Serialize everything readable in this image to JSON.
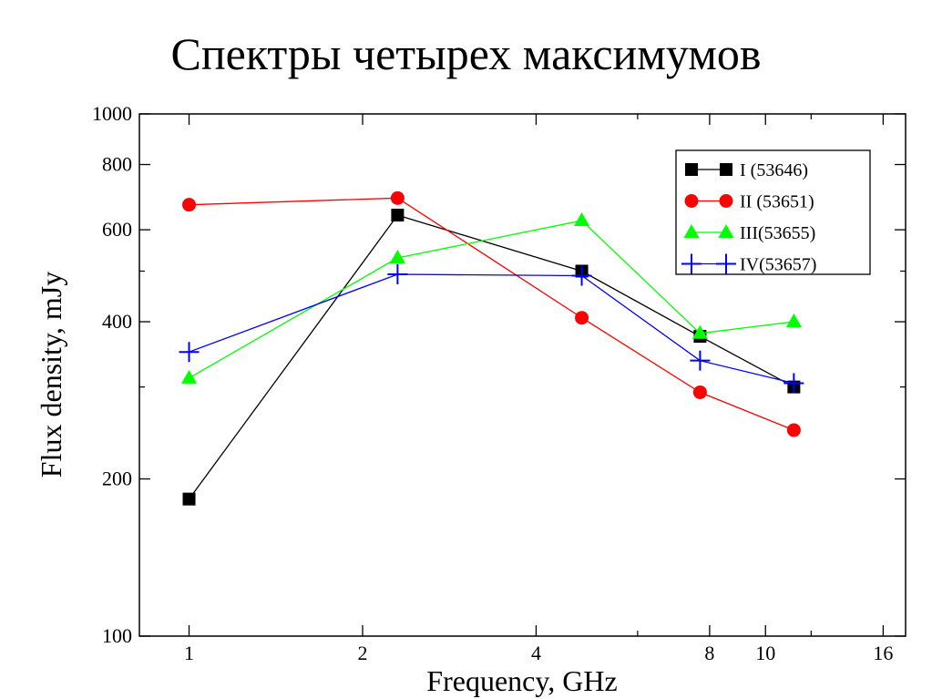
{
  "slide": {
    "title": "Спектры четырех максимумов"
  },
  "chart_data": {
    "type": "line",
    "title": "",
    "xlabel": "Frequency, GHz",
    "ylabel": "Flux density, mJy",
    "xscale": "log",
    "yscale": "log",
    "xlim": [
      0.82,
      17.5
    ],
    "ylim": [
      100,
      1000
    ],
    "xticks": [
      1,
      2,
      4,
      8,
      10,
      16
    ],
    "xticks_minor": [
      6,
      12
    ],
    "yticks": [
      100,
      200,
      400,
      600,
      800,
      1000
    ],
    "yticks_minor": [
      300,
      500
    ],
    "grid": false,
    "legend_position": "top-right",
    "series": [
      {
        "name": "I (53646)",
        "color": "#000000",
        "marker": "square",
        "x": [
          1.0,
          2.3,
          4.8,
          7.7,
          11.2
        ],
        "y": [
          183,
          640,
          500,
          375,
          300
        ]
      },
      {
        "name": "II (53651)",
        "color": "#ff0000",
        "marker": "circle",
        "x": [
          1.0,
          2.3,
          4.8,
          7.7,
          11.2
        ],
        "y": [
          670,
          690,
          407,
          293,
          248
        ]
      },
      {
        "name": "III(53655)",
        "color": "#00ff00",
        "marker": "triangle",
        "x": [
          1.0,
          2.3,
          4.8,
          7.7,
          11.2
        ],
        "y": [
          312,
          530,
          625,
          380,
          400
        ]
      },
      {
        "name": "IV(53657)",
        "color": "#0000ff",
        "marker": "plus",
        "x": [
          1.0,
          2.3,
          4.8,
          7.7,
          11.2
        ],
        "y": [
          350,
          493,
          490,
          337,
          305
        ]
      }
    ]
  }
}
